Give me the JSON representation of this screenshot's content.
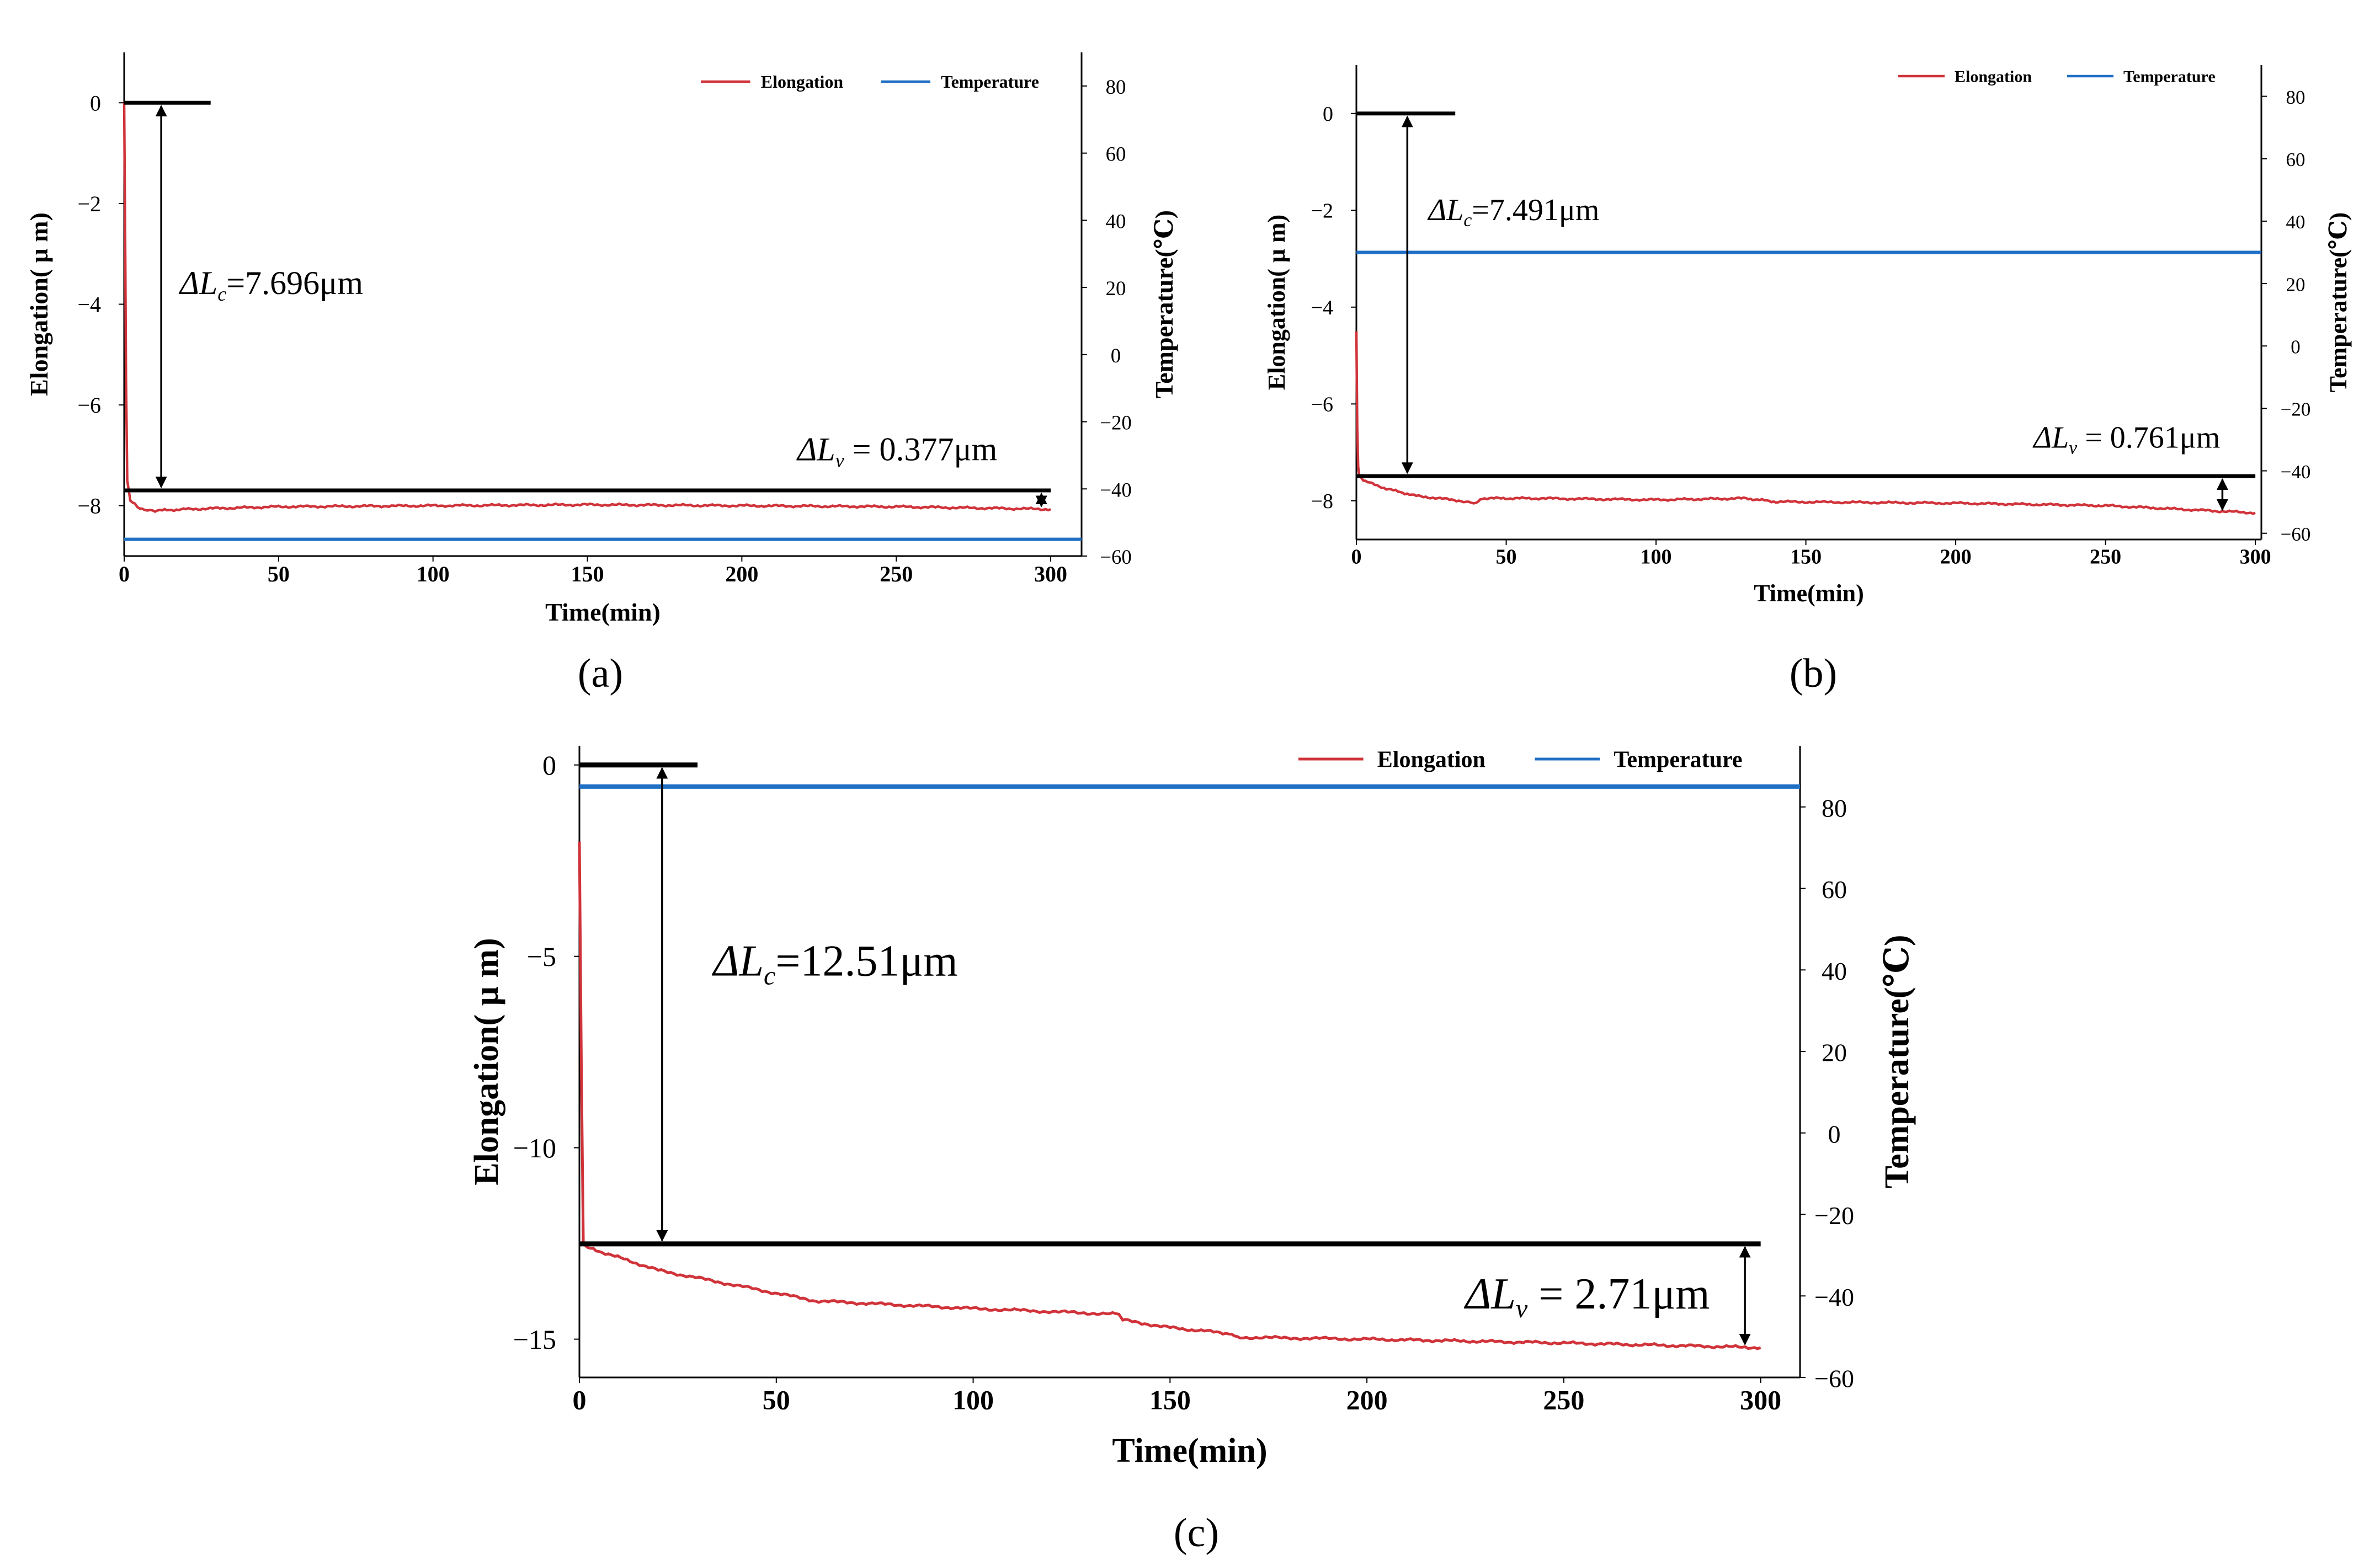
{
  "figure_labels": [
    "(a)",
    "(b)",
    "(c)"
  ],
  "colors": {
    "elongation": "#d0333a",
    "temperature": "#1f6fc5",
    "axis": "#000000"
  },
  "chart_data": [
    {
      "type": "line",
      "panel": "(a)",
      "xlabel": "Time(min)",
      "ylabel": "Elongation( μ m)",
      "y2label": "Temperature(℃)",
      "xlim": [
        0,
        310
      ],
      "ylim": [
        -9.0,
        1.0
      ],
      "y2lim": [
        -60,
        90
      ],
      "xticks": [
        0,
        50,
        100,
        150,
        200,
        250,
        300
      ],
      "xtick_labels": [
        "0",
        "50",
        "100",
        "150",
        "200",
        "250",
        "300"
      ],
      "yticks": [
        0,
        -2,
        -4,
        -6,
        -8
      ],
      "ytick_labels": [
        "0",
        "−2",
        "−4",
        "−6",
        "−8"
      ],
      "y2ticks": [
        80,
        60,
        40,
        20,
        0,
        -20,
        -40,
        -60
      ],
      "y2tick_labels": [
        "80",
        "60",
        "40",
        "20",
        "0",
        "−20",
        "−40",
        "−60"
      ],
      "legend": {
        "position": "top-right",
        "entries": [
          "Elongation",
          "Temperature"
        ]
      },
      "series": [
        {
          "name": "Elongation",
          "axis": "left",
          "x": [
            0,
            0.3,
            0.6,
            1,
            2,
            5,
            10,
            20,
            50,
            100,
            150,
            200,
            250,
            300
          ],
          "values": [
            0,
            -2.5,
            -5.5,
            -7.5,
            -7.9,
            -8.05,
            -8.1,
            -8.07,
            -8.02,
            -8.0,
            -7.98,
            -8.0,
            -8.02,
            -8.07
          ]
        },
        {
          "name": "Temperature",
          "axis": "right",
          "x": [
            0,
            310
          ],
          "values": [
            -55,
            -55
          ]
        }
      ],
      "annotations": [
        {
          "kind": "ref-line",
          "y": 0,
          "x_end": 28
        },
        {
          "kind": "ref-line",
          "y": -7.696,
          "x_end": 300
        },
        {
          "kind": "arrow",
          "x": 12,
          "y_from": 0,
          "y_to": -7.696,
          "label_sym": "ΔL",
          "label_sub": "c",
          "label_val": "=7.696μm",
          "label_x": 18,
          "label_y": -3.8
        },
        {
          "kind": "arrow",
          "x": 297,
          "y_from": -7.696,
          "y_to": -8.073,
          "label_sym": "ΔL",
          "label_sub": "v",
          "label_val": " = 0.377μm",
          "label_x": 218,
          "label_y": -7.1
        }
      ]
    },
    {
      "type": "line",
      "panel": "(b)",
      "xlabel": "Time(min)",
      "ylabel": "Elongation( μ m)",
      "y2label": "Temperature(℃)",
      "xlim": [
        0,
        302
      ],
      "ylim": [
        -8.8,
        1.0
      ],
      "y2lim": [
        -62,
        90
      ],
      "xticks": [
        0,
        50,
        100,
        150,
        200,
        250,
        300
      ],
      "xtick_labels": [
        "0",
        "50",
        "100",
        "150",
        "200",
        "250",
        "300"
      ],
      "yticks": [
        0,
        -2,
        -4,
        -6,
        -8
      ],
      "ytick_labels": [
        "0",
        "−2",
        "−4",
        "−6",
        "−8"
      ],
      "y2ticks": [
        80,
        60,
        40,
        20,
        0,
        -20,
        -40,
        -60
      ],
      "y2tick_labels": [
        "80",
        "60",
        "40",
        "20",
        "0",
        "−20",
        "−40",
        "−60"
      ],
      "legend": {
        "position": "top-right",
        "entries": [
          "Elongation",
          "Temperature"
        ]
      },
      "series": [
        {
          "name": "Elongation",
          "axis": "left",
          "x": [
            0,
            0.3,
            0.6,
            1,
            3,
            10,
            20,
            35,
            40,
            42,
            60,
            100,
            130,
            140,
            200,
            250,
            300
          ],
          "values": [
            -4.5,
            -6.5,
            -7.3,
            -7.49,
            -7.6,
            -7.75,
            -7.9,
            -8.0,
            -8.05,
            -7.95,
            -7.95,
            -7.98,
            -7.95,
            -8.02,
            -8.05,
            -8.1,
            -8.25
          ]
        },
        {
          "name": "Temperature",
          "axis": "right",
          "x": [
            0,
            302
          ],
          "values": [
            30,
            30
          ]
        }
      ],
      "annotations": [
        {
          "kind": "ref-line",
          "y": 0,
          "x_end": 33
        },
        {
          "kind": "ref-line",
          "y": -7.491,
          "x_end": 300
        },
        {
          "kind": "arrow",
          "x": 17,
          "y_from": 0,
          "y_to": -7.491,
          "label_sym": "ΔL",
          "label_sub": "c",
          "label_val": "=7.491μm",
          "label_x": 24,
          "label_y": -2.2
        },
        {
          "kind": "arrow",
          "x": 289,
          "y_from": -7.491,
          "y_to": -8.252,
          "label_sym": "ΔL",
          "label_sub": "v",
          "label_val": " = 0.761μm",
          "label_x": 226,
          "label_y": -6.9
        }
      ]
    },
    {
      "type": "line",
      "panel": "(c)",
      "xlabel": "Time(min)",
      "ylabel": "Elongation( μ m)",
      "y2label": "Temperature(℃)",
      "xlim": [
        0,
        310
      ],
      "ylim": [
        -16.0,
        0.5
      ],
      "y2lim": [
        -60,
        95
      ],
      "xticks": [
        0,
        50,
        100,
        150,
        200,
        250,
        300
      ],
      "xtick_labels": [
        "0",
        "50",
        "100",
        "150",
        "200",
        "250",
        "300"
      ],
      "yticks": [
        0,
        -5,
        -10,
        -15
      ],
      "ytick_labels": [
        "0",
        "−5",
        "−10",
        "−15"
      ],
      "y2ticks": [
        80,
        60,
        40,
        20,
        0,
        -20,
        -40,
        -60
      ],
      "y2tick_labels": [
        "80",
        "60",
        "40",
        "20",
        "0",
        "−20",
        "−40",
        "−60"
      ],
      "legend": {
        "position": "top-right",
        "entries": [
          "Elongation",
          "Temperature"
        ]
      },
      "series": [
        {
          "name": "Elongation",
          "axis": "left",
          "x": [
            0,
            0.5,
            1,
            2,
            5,
            20,
            40,
            60,
            100,
            137,
            138,
            150,
            165,
            167,
            200,
            250,
            300
          ],
          "values": [
            -2,
            -8,
            -12.5,
            -12.6,
            -12.7,
            -13.2,
            -13.6,
            -14.0,
            -14.2,
            -14.35,
            -14.5,
            -14.7,
            -14.85,
            -14.95,
            -15.0,
            -15.1,
            -15.22
          ]
        },
        {
          "name": "Temperature",
          "axis": "right",
          "x": [
            0,
            310
          ],
          "values": [
            85,
            85
          ]
        }
      ],
      "annotations": [
        {
          "kind": "ref-line",
          "y": 0,
          "x_end": 30
        },
        {
          "kind": "ref-line",
          "y": -12.51,
          "x_end": 300
        },
        {
          "kind": "arrow",
          "x": 21,
          "y_from": 0,
          "y_to": -12.51,
          "label_sym": "ΔL",
          "label_sub": "c",
          "label_val": "=12.51μm",
          "label_x": 34,
          "label_y": -5.5
        },
        {
          "kind": "arrow",
          "x": 296,
          "y_from": -12.51,
          "y_to": -15.22,
          "label_sym": "ΔL",
          "label_sub": "v",
          "label_val": " = 2.71μm",
          "label_x": 225,
          "label_y": -14.2
        }
      ]
    }
  ]
}
